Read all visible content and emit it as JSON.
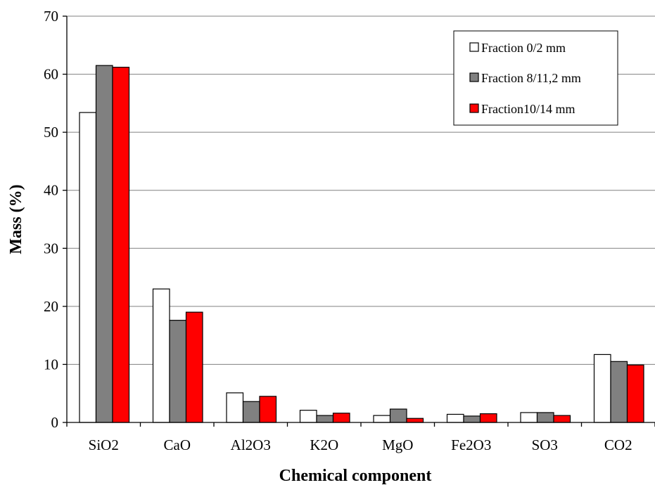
{
  "chart_data": {
    "type": "bar",
    "title": "",
    "xlabel": "Chemical component",
    "ylabel": "Mass (%)",
    "ylim": [
      0,
      70
    ],
    "yticks": [
      0,
      10,
      20,
      30,
      40,
      50,
      60,
      70
    ],
    "grid": "horizontal",
    "legend_position": "top-right",
    "categories": [
      "SiO2",
      "CaO",
      "Al2O3",
      "K2O",
      "MgO",
      "Fe2O3",
      "SO3",
      "CO2"
    ],
    "series": [
      {
        "name": "Fraction 0/2 mm",
        "color": "#ffffff",
        "values": [
          53.4,
          23.0,
          5.1,
          2.1,
          1.2,
          1.4,
          1.7,
          11.7
        ]
      },
      {
        "name": "Fraction 8/11,2 mm",
        "color": "#808080",
        "values": [
          61.5,
          17.6,
          3.6,
          1.2,
          2.3,
          1.1,
          1.7,
          10.5
        ]
      },
      {
        "name": "Fraction10/14 mm",
        "color": "#ff0000",
        "values": [
          61.2,
          19.0,
          4.5,
          1.6,
          0.7,
          1.5,
          1.2,
          9.9
        ]
      }
    ]
  }
}
